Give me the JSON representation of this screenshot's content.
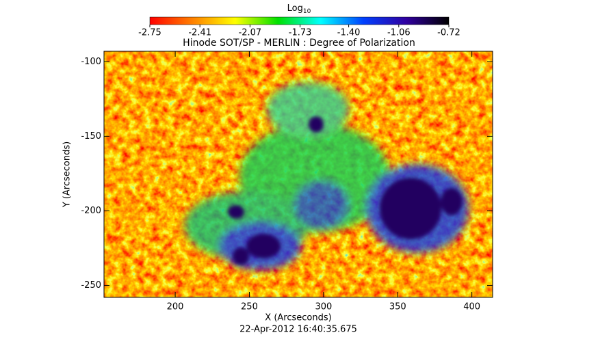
{
  "chart_data": {
    "type": "heatmap",
    "title": "Hinode SOT/SP - MERLIN : Degree of Polarization",
    "subtitle": "22-Apr-2012 16:40:35.675",
    "xlabel": "X (Arcseconds)",
    "ylabel": "Y (Arcseconds)",
    "xlim": [
      152,
      414
    ],
    "xticks": [
      200,
      250,
      300,
      350,
      400
    ],
    "ylim": [
      -258,
      -93
    ],
    "yticks": [
      -100,
      -150,
      -200,
      -250
    ],
    "colorbar": {
      "label": "Log",
      "label_sub": "10",
      "lim": [
        -2.75,
        -0.72
      ],
      "ticks": [
        -2.75,
        -2.41,
        -2.07,
        -1.73,
        {
          "value": -1.4,
          "label": "-1.40"
        },
        -1.06,
        -0.72
      ],
      "colors": [
        "#ff0000",
        "#ff8000",
        "#ffff00",
        "#00e000",
        "#00ffff",
        "#0040ff",
        "#3000a0",
        "#000000"
      ]
    }
  }
}
